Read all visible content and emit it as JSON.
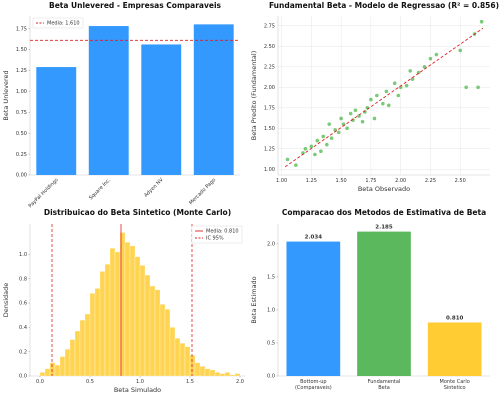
{
  "chart_data": [
    {
      "type": "bar",
      "title": "Beta Unlevered - Empresas Comparaveis",
      "ylabel": "Beta Unlevered",
      "categories": [
        "PayPal Holdings",
        "Square Inc.",
        "Adyen NV",
        "Mercado Pago"
      ],
      "values": [
        1.29,
        1.78,
        1.56,
        1.8
      ],
      "color": "#3399ff",
      "xtick_rotation": 45,
      "ylim": [
        0,
        1.9
      ],
      "yticks": [
        {
          "value": 0,
          "label": "0.00"
        },
        0.25,
        {
          "value": 0.5,
          "label": "0.50"
        },
        0.75,
        {
          "value": 1,
          "label": "1.00"
        },
        1.25,
        {
          "value": 1.5,
          "label": "1.50"
        },
        1.75
      ],
      "reference_lines": [
        {
          "value": 1.61,
          "label": "Media: 1.610",
          "color": "#e02020",
          "style": "dashed"
        }
      ],
      "legend": "upper left",
      "grid": false
    },
    {
      "type": "scatter",
      "title": "Fundamental Beta - Modelo de Regressao (R² = 0.856)",
      "xlabel": "Beta Observado",
      "ylabel": "Beta Predito (Fundamental)",
      "color": "#4cb84c",
      "x": [
        1.05,
        1.12,
        1.18,
        1.2,
        1.25,
        1.28,
        1.3,
        1.33,
        1.35,
        1.38,
        1.4,
        1.42,
        1.45,
        1.48,
        1.5,
        1.52,
        1.55,
        1.58,
        1.6,
        1.62,
        1.65,
        1.68,
        1.7,
        1.72,
        1.75,
        1.78,
        1.8,
        1.85,
        1.88,
        1.9,
        1.95,
        1.98,
        2.0,
        2.05,
        2.08,
        2.1,
        2.15,
        2.2,
        2.25,
        2.3,
        2.5,
        2.55,
        2.62,
        2.65,
        2.68
      ],
      "y": [
        1.12,
        1.05,
        1.2,
        1.25,
        1.28,
        1.18,
        1.35,
        1.22,
        1.4,
        1.3,
        1.55,
        1.38,
        1.48,
        1.45,
        1.62,
        1.55,
        1.5,
        1.68,
        1.6,
        1.72,
        1.65,
        1.58,
        1.7,
        1.75,
        1.85,
        1.62,
        1.9,
        1.8,
        1.95,
        1.78,
        2.05,
        1.9,
        2.0,
        2.02,
        2.2,
        2.1,
        2.18,
        2.25,
        2.35,
        2.4,
        2.45,
        2.0,
        2.65,
        2.0,
        2.8
      ],
      "fit_line": {
        "x": [
          1.03,
          2.69
        ],
        "y": [
          1.03,
          2.72
        ],
        "color": "#e02020"
      },
      "xlim": [
        0.97,
        2.75
      ],
      "ylim": [
        0.93,
        2.87
      ],
      "xticks": [
        {
          "value": 1,
          "label": "1.00"
        },
        1.25,
        {
          "value": 1.5,
          "label": "1.50"
        },
        1.75,
        {
          "value": 2,
          "label": "2.00"
        },
        2.25,
        {
          "value": 2.5,
          "label": "2.50"
        }
      ],
      "yticks": [
        {
          "value": 1,
          "label": "1.00"
        },
        1.25,
        {
          "value": 1.5,
          "label": "1.50"
        },
        1.75,
        {
          "value": 2,
          "label": "2.00"
        },
        2.25,
        {
          "value": 2.5,
          "label": "2.50"
        },
        2.75
      ],
      "grid": true
    },
    {
      "type": "histogram",
      "title": "Distribuicao do Beta Sintetico (Monte Carlo)",
      "xlabel": "Beta Simulado",
      "ylabel": "Densidade",
      "color": "#ffcc33",
      "bins": [
        0.0,
        0.05,
        0.1,
        0.15,
        0.2,
        0.25,
        0.3,
        0.35,
        0.4,
        0.45,
        0.5,
        0.55,
        0.6,
        0.65,
        0.7,
        0.75,
        0.8,
        0.85,
        0.9,
        0.95,
        1.0,
        1.05,
        1.1,
        1.15,
        1.2,
        1.25,
        1.3,
        1.35,
        1.4,
        1.45,
        1.5,
        1.55,
        1.6,
        1.65,
        1.7,
        1.75,
        1.8,
        1.85,
        1.9,
        1.95,
        2.0
      ],
      "values": [
        0.03,
        0.06,
        0.11,
        0.09,
        0.16,
        0.22,
        0.3,
        0.37,
        0.46,
        0.51,
        0.68,
        0.72,
        0.86,
        0.92,
        1.05,
        1.02,
        1.18,
        1.1,
        1.07,
        0.98,
        0.91,
        0.83,
        0.74,
        0.71,
        0.59,
        0.55,
        0.4,
        0.31,
        0.27,
        0.24,
        0.17,
        0.11,
        0.08,
        0.06,
        0.05,
        0.03,
        0.02,
        0.03,
        0.01,
        0.02
      ],
      "xlim": [
        -0.1,
        2.05
      ],
      "ylim": [
        0,
        1.25
      ],
      "xticks": [
        {
          "value": 0,
          "label": "0.0"
        },
        0.5,
        {
          "value": 1,
          "label": "1.0"
        },
        1.5,
        {
          "value": 2,
          "label": "2.0"
        }
      ],
      "yticks": [
        {
          "value": 0,
          "label": "0.0"
        },
        0.2,
        0.4,
        0.6,
        0.8,
        {
          "value": 1,
          "label": "1.0"
        }
      ],
      "reference_lines": [
        {
          "value": 0.81,
          "label": "Media: 0.810",
          "color": "#e02020",
          "style": "solid"
        },
        {
          "value": 0.12,
          "label": "IC 95%",
          "color": "#e02020",
          "style": "dashed"
        },
        {
          "value": 1.52,
          "color": "#e02020",
          "style": "dashed"
        }
      ],
      "legend": "upper right",
      "grid": false
    },
    {
      "type": "bar",
      "title": "Comparacao dos Metodos de Estimativa de Beta",
      "ylabel": "Beta Estimado",
      "categories": [
        "Bottom-up\n(Comparaveis)",
        "Fundamental\nBeta",
        "Monte Carlo\nSintetico"
      ],
      "values": [
        2.034,
        2.185,
        0.81
      ],
      "value_labels": [
        "2.034",
        "2.185",
        "0.810"
      ],
      "colors": [
        "#3399ff",
        "#5cb85c",
        "#ffcc33"
      ],
      "ylim": [
        0,
        2.3
      ],
      "yticks": [
        {
          "value": 0,
          "label": "0.0"
        },
        0.5,
        {
          "value": 1,
          "label": "1.0"
        },
        1.5,
        {
          "value": 2,
          "label": "2.0"
        }
      ],
      "grid": false
    }
  ]
}
